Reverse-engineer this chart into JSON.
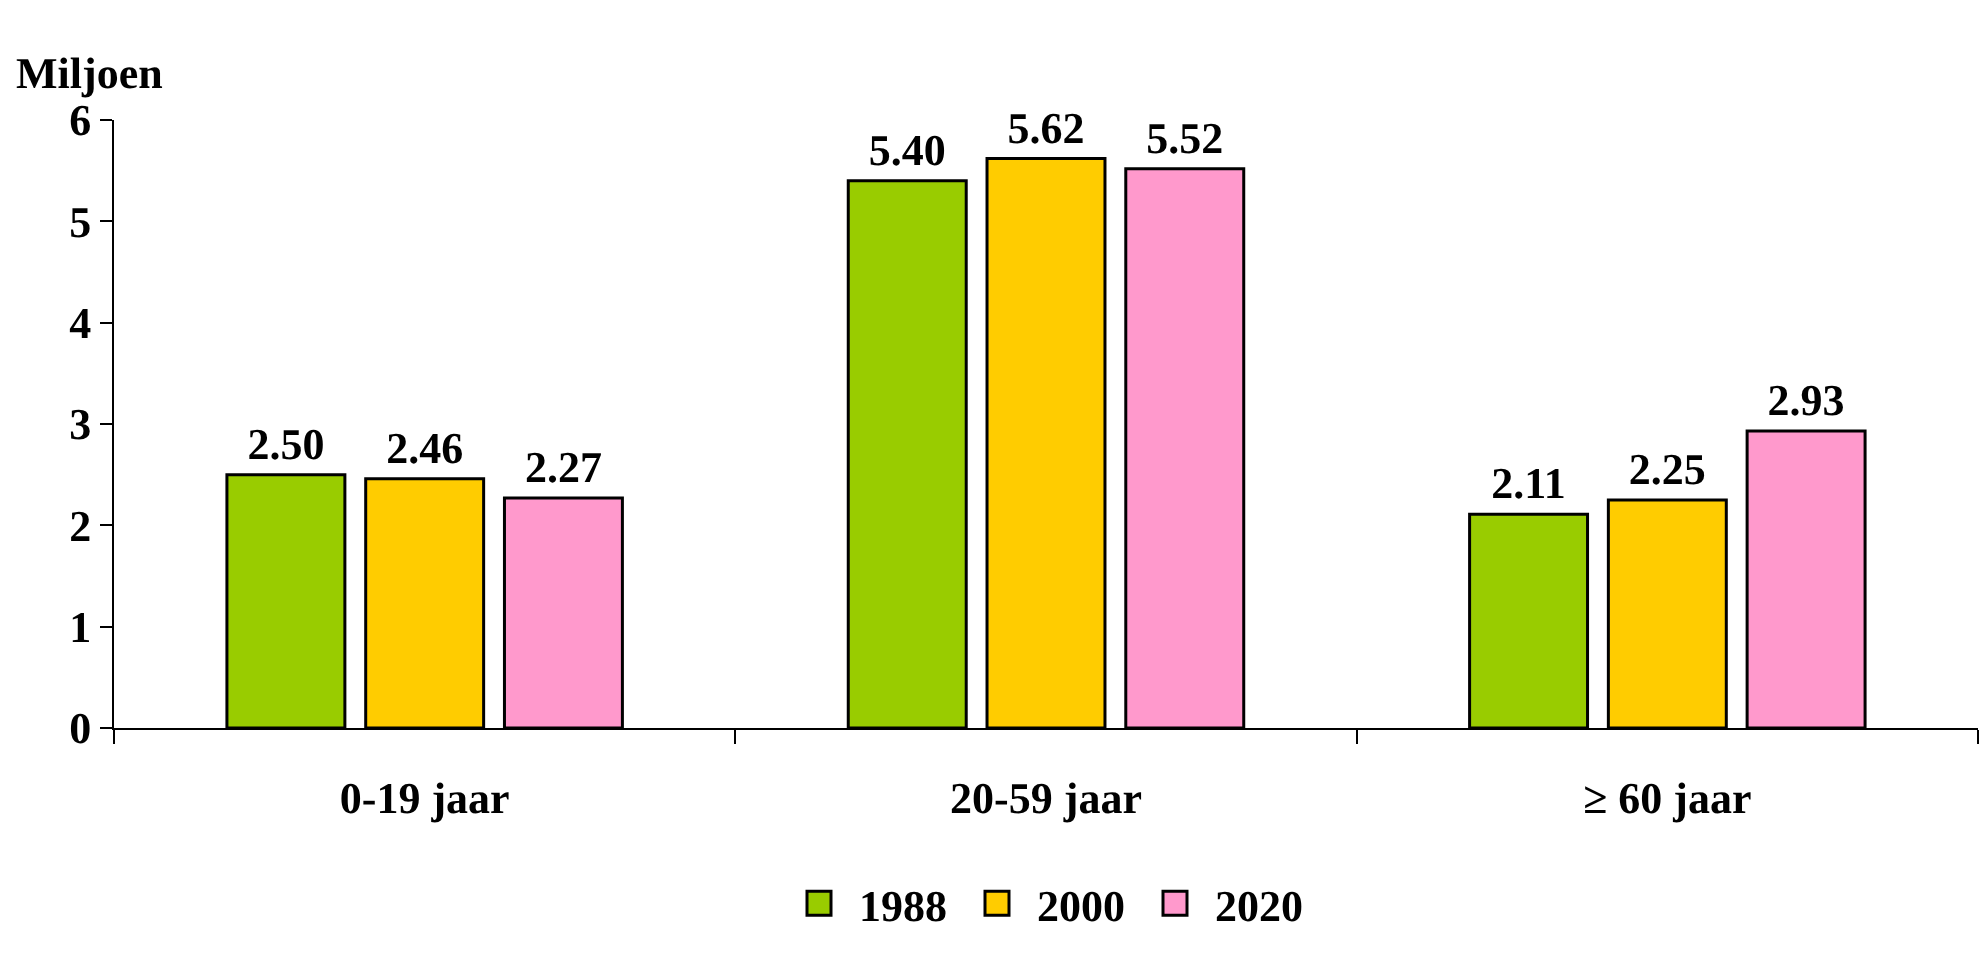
{
  "chart_data": {
    "type": "bar",
    "ylabel": "Miljoen",
    "categories": [
      "0-19 jaar",
      "20-59 jaar",
      "≥ 60 jaar"
    ],
    "series": [
      {
        "name": "1988",
        "color": "#99cc00",
        "values": [
          2.5,
          5.4,
          2.11
        ],
        "value_labels": [
          "2.50",
          "5.40",
          "2.11"
        ]
      },
      {
        "name": "2000",
        "color": "#ffcc00",
        "values": [
          2.46,
          5.62,
          2.25
        ],
        "value_labels": [
          "2.46",
          "5.62",
          "2.25"
        ]
      },
      {
        "name": "2020",
        "color": "#ff99cc",
        "values": [
          2.27,
          5.52,
          2.93
        ],
        "value_labels": [
          "2.27",
          "5.52",
          "2.93"
        ]
      }
    ],
    "ylim": [
      0,
      6
    ],
    "yticks": [
      0,
      1,
      2,
      3,
      4,
      5,
      6
    ],
    "grid": false,
    "legend": "bottom"
  }
}
